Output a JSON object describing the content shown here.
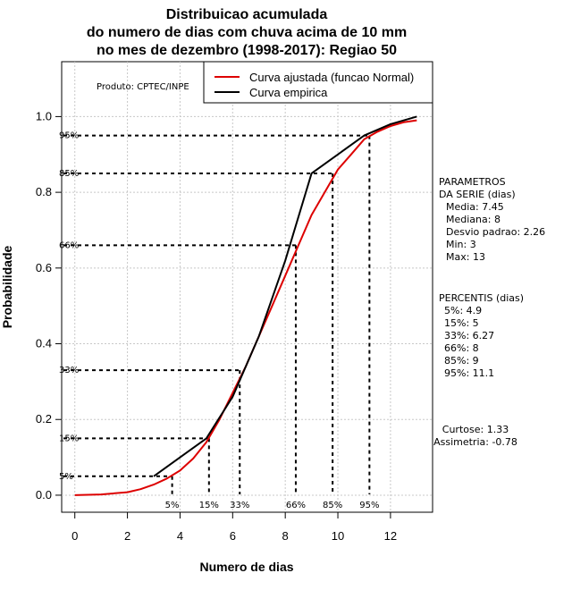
{
  "chart_data": {
    "type": "line",
    "title_lines": [
      "Distribuicao acumulada",
      "do numero de dias com chuva acima de 10 mm",
      "no mes de dezembro (1998-2017): Regiao 50"
    ],
    "xlabel": "Numero de dias",
    "ylabel": "Probabilidade",
    "xlim": [
      -0.5,
      13.6
    ],
    "ylim": [
      -0.045,
      1.145
    ],
    "x_ticks": [
      0,
      2,
      4,
      6,
      8,
      10,
      12
    ],
    "y_ticks": [
      0.0,
      0.2,
      0.4,
      0.6,
      0.8,
      1.0
    ],
    "x_tick_labels": [
      "0",
      "2",
      "4",
      "6",
      "8",
      "10",
      "12"
    ],
    "y_tick_labels": [
      "0.0",
      "0.2",
      "0.4",
      "0.6",
      "0.8",
      "1.0"
    ],
    "product_label": "Produto: CPTEC/INPE",
    "legend": [
      {
        "label": "Curva ajustada (funcao Normal)",
        "color": "#dd0000"
      },
      {
        "label": "Curva empirica",
        "color": "#000000"
      }
    ],
    "series": [
      {
        "name": "Curva ajustada (funcao Normal)",
        "color": "#dd0000",
        "x": [
          0,
          1,
          2,
          2.5,
          3,
          3.5,
          4,
          4.5,
          5,
          5.5,
          6,
          6.5,
          7,
          7.5,
          8,
          8.5,
          9,
          9.5,
          10,
          10.5,
          11,
          11.5,
          12,
          12.5,
          13
        ],
        "y": [
          0.0,
          0.002,
          0.008,
          0.016,
          0.028,
          0.044,
          0.065,
          0.097,
          0.14,
          0.2,
          0.27,
          0.34,
          0.42,
          0.5,
          0.58,
          0.66,
          0.74,
          0.8,
          0.86,
          0.9,
          0.94,
          0.96,
          0.975,
          0.985,
          0.99
        ]
      },
      {
        "name": "Curva empirica",
        "color": "#000000",
        "x": [
          3,
          5,
          6,
          7,
          8,
          9,
          10,
          11,
          12,
          13
        ],
        "y": [
          0.05,
          0.15,
          0.26,
          0.42,
          0.62,
          0.85,
          0.9,
          0.95,
          0.98,
          1.0
        ]
      }
    ],
    "percentile_lines": [
      {
        "label": "5%",
        "p": 0.05,
        "x": 3.7
      },
      {
        "label": "15%",
        "p": 0.15,
        "x": 5.1
      },
      {
        "label": "33%",
        "p": 0.33,
        "x": 6.27
      },
      {
        "label": "66%",
        "p": 0.66,
        "x": 8.4
      },
      {
        "label": "85%",
        "p": 0.85,
        "x": 9.8
      },
      {
        "label": "95%",
        "p": 0.95,
        "x": 11.2
      }
    ],
    "parametros": {
      "header1": "PARAMETROS",
      "header2": "DA SERIE (dias)",
      "lines": [
        "Media: 7.45",
        "Mediana: 8",
        "Desvio padrao: 2.26",
        "Min: 3",
        "Max: 13"
      ]
    },
    "percentis": {
      "header": "PERCENTIS (dias)",
      "lines": [
        "5%: 4.9",
        "15%: 5",
        "33%: 6.27",
        "66%: 8",
        "85%: 9",
        "95%: 11.1"
      ]
    },
    "curtose": "Curtose: 1.33",
    "assimetria": "Assimetria: -0.78"
  }
}
